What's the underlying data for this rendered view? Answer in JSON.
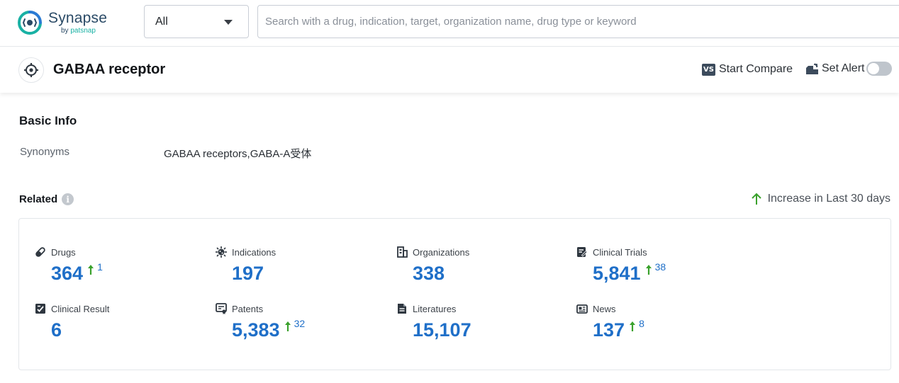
{
  "brand": {
    "name": "Synapse",
    "by": "by",
    "vendor": "patsnap",
    "accent": "#19b1a4"
  },
  "search": {
    "scope_selected": "All",
    "placeholder": "Search with a drug, indication, target, organization name, drug type or keyword"
  },
  "header": {
    "title": "GABAA receptor",
    "compare_label": "Start Compare",
    "compare_badge": "VS",
    "alert_label": "Set Alert",
    "alert_enabled": false
  },
  "basic_info": {
    "title": "Basic Info",
    "synonyms_label": "Synonyms",
    "synonyms_value": "GABAA receptors,GABA-A受体"
  },
  "related": {
    "title": "Related",
    "info_glyph": "i",
    "increase_legend": "Increase in Last 30 days",
    "increase_color": "#3aa12c",
    "value_color": "#1f6fc8",
    "stats": [
      {
        "icon": "pill-icon",
        "label": "Drugs",
        "value": "364",
        "increase": "1"
      },
      {
        "icon": "virus-icon",
        "label": "Indications",
        "value": "197",
        "increase": ""
      },
      {
        "icon": "building-icon",
        "label": "Organizations",
        "value": "338",
        "increase": ""
      },
      {
        "icon": "clinical-trial-icon",
        "label": "Clinical Trials",
        "value": "5,841",
        "increase": "38"
      },
      {
        "icon": "clinical-result-icon",
        "label": "Clinical Result",
        "value": "6",
        "increase": ""
      },
      {
        "icon": "patent-icon",
        "label": "Patents",
        "value": "5,383",
        "increase": "32"
      },
      {
        "icon": "literature-icon",
        "label": "Literatures",
        "value": "15,107",
        "increase": ""
      },
      {
        "icon": "news-icon",
        "label": "News",
        "value": "137",
        "increase": "8"
      }
    ]
  }
}
